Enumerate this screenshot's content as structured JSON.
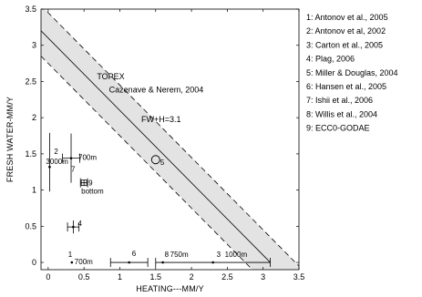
{
  "chart_data": {
    "type": "scatter",
    "title": "",
    "xlabel": "HEATING---MM/Y",
    "ylabel": "FRESH WATER-MM/Y",
    "xlim": [
      -0.1,
      3.5
    ],
    "ylim": [
      -0.1,
      3.5
    ],
    "xticks": [
      0,
      0.5,
      1,
      1.5,
      2,
      2.5,
      3,
      3.5
    ],
    "yticks": [
      0,
      0.5,
      1,
      1.5,
      2,
      2.5,
      3,
      3.5
    ],
    "xtick_labels": [
      "0",
      "0.5",
      "1",
      "1.5",
      "2",
      "2.5",
      "3",
      "3.5"
    ],
    "ytick_labels": [
      "0",
      "0.5",
      "1",
      "1.5",
      "2",
      "2.5",
      "3",
      "3.5"
    ],
    "constraint_line": {
      "label": "FW+H=3.1",
      "intercept": 3.1,
      "band_halfwidth": 0.35
    },
    "annotations": [
      {
        "text": "TOPEX",
        "x": 0.68,
        "y": 2.53
      },
      {
        "text": "Cazenave & Nerem, 2004",
        "x": 0.85,
        "y": 2.35
      },
      {
        "text": "FW+H=3.1",
        "x": 1.3,
        "y": 1.94
      }
    ],
    "points": [
      {
        "id": "1",
        "x": 0.33,
        "y": 0.0,
        "labels": [
          "1",
          "700m"
        ],
        "xerr": null,
        "yerr": null
      },
      {
        "id": "2",
        "x": 0.02,
        "y": 1.32,
        "labels": [
          "2",
          "3000m"
        ],
        "xerr": null,
        "yerr": [
          0.98,
          1.79
        ]
      },
      {
        "id": "3",
        "x": 2.3,
        "y": 0.0,
        "labels": [
          "3",
          "1000m"
        ],
        "xerr": [
          1.5,
          3.1
        ],
        "yerr": null
      },
      {
        "id": "4",
        "x": 0.35,
        "y": 0.49,
        "labels": [
          "4"
        ],
        "xerr": [
          0.27,
          0.43
        ],
        "yerr": [
          0.4,
          0.58
        ]
      },
      {
        "id": "5",
        "x": 1.5,
        "y": 1.42,
        "labels": [
          "5"
        ],
        "xerr": null,
        "yerr": null
      },
      {
        "id": "6",
        "x": 1.13,
        "y": 0.0,
        "labels": [
          "6"
        ],
        "xerr": [
          0.87,
          1.39
        ],
        "yerr": null
      },
      {
        "id": "7",
        "x": 0.32,
        "y": 1.44,
        "labels": [
          "7",
          "700m"
        ],
        "xerr": [
          0.2,
          0.44
        ],
        "yerr": [
          1.1,
          1.78
        ]
      },
      {
        "id": "8",
        "x": 1.6,
        "y": 0.0,
        "labels": [
          "8",
          "750m"
        ],
        "xerr": null,
        "yerr": null
      },
      {
        "id": "9",
        "x": 0.5,
        "y": 1.1,
        "labels": [
          "9",
          "bottom"
        ],
        "xerr": [
          0.45,
          0.55
        ],
        "yerr": [
          1.06,
          1.14
        ]
      }
    ],
    "legend": {
      "placement": "right",
      "entries": [
        "1: Antonov et al., 2005",
        "2: Antonov et al, 2002",
        "3: Carton et al., 2005",
        "4: Plag, 2006",
        "5: Miller & Douglas, 2004",
        "6: Hansen et al., 2005",
        "7: Ishii et al., 2006",
        "8: Willis et al., 2004",
        "9: ECC0-GODAE"
      ]
    },
    "colors": {
      "band": "#e3e3e3",
      "ink": "#000000"
    }
  }
}
